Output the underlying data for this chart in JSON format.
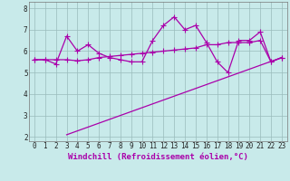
{
  "xlabel": "Windchill (Refroidissement éolien,°C)",
  "x_values": [
    0,
    1,
    2,
    3,
    4,
    5,
    6,
    7,
    8,
    9,
    10,
    11,
    12,
    13,
    14,
    15,
    16,
    17,
    18,
    19,
    20,
    21,
    22,
    23
  ],
  "line1": [
    5.6,
    5.6,
    5.4,
    6.7,
    6.0,
    6.3,
    5.9,
    5.7,
    5.6,
    5.5,
    5.5,
    6.5,
    7.2,
    7.6,
    7.0,
    7.2,
    6.4,
    5.5,
    5.0,
    6.5,
    6.5,
    6.9,
    5.5,
    5.7
  ],
  "line2": [
    5.6,
    5.6,
    5.6,
    5.6,
    5.55,
    5.6,
    5.7,
    5.75,
    5.8,
    5.85,
    5.9,
    5.95,
    6.0,
    6.05,
    6.1,
    6.15,
    6.3,
    6.3,
    6.4,
    6.4,
    6.4,
    6.5,
    5.5,
    5.7
  ],
  "line3_x": [
    3,
    23
  ],
  "line3_y": [
    2.1,
    5.7
  ],
  "line_color": "#aa00aa",
  "bg_color": "#c8eaea",
  "grid_color": "#99bbbb",
  "ylim": [
    1.8,
    8.3
  ],
  "xlim": [
    -0.5,
    23.5
  ],
  "yticks": [
    2,
    3,
    4,
    5,
    6,
    7,
    8
  ],
  "xticks": [
    0,
    1,
    2,
    3,
    4,
    5,
    6,
    7,
    8,
    9,
    10,
    11,
    12,
    13,
    14,
    15,
    16,
    17,
    18,
    19,
    20,
    21,
    22,
    23
  ],
  "marker": "+",
  "markersize": 4,
  "linewidth": 0.9,
  "tick_fontsize": 5.5,
  "label_fontsize": 6.5
}
